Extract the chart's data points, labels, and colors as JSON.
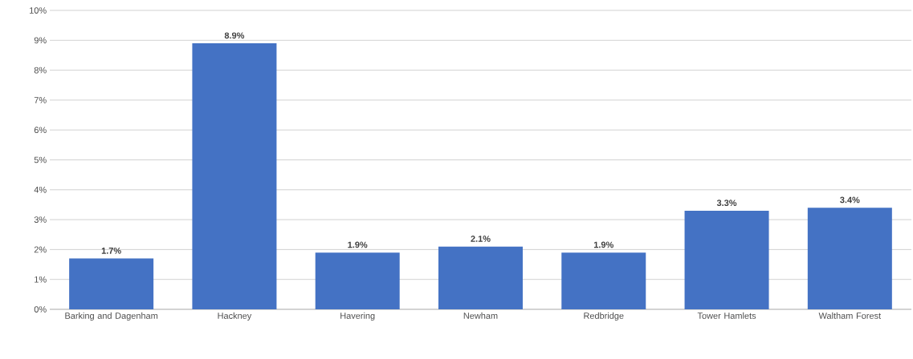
{
  "chart_data": {
    "type": "bar",
    "categories": [
      "Barking and Dagenham",
      "Hackney",
      "Havering",
      "Newham",
      "Redbridge",
      "Tower Hamlets",
      "Waltham Forest"
    ],
    "values": [
      1.7,
      8.9,
      1.9,
      2.1,
      1.9,
      3.3,
      3.4
    ],
    "value_labels": [
      "1.7%",
      "8.9%",
      "1.9%",
      "2.1%",
      "1.9%",
      "3.3%",
      "3.4%"
    ],
    "color": "#4472c4",
    "ylim": [
      0,
      10
    ],
    "yticks": [
      {
        "value": 0,
        "label": "0%"
      },
      {
        "value": 1,
        "label": "1%"
      },
      {
        "value": 2,
        "label": "2%"
      },
      {
        "value": 3,
        "label": "3%"
      },
      {
        "value": 4,
        "label": "4%"
      },
      {
        "value": 5,
        "label": "5%"
      },
      {
        "value": 6,
        "label": "6%"
      },
      {
        "value": 7,
        "label": "7%"
      },
      {
        "value": 8,
        "label": "8%"
      },
      {
        "value": 9,
        "label": "9%"
      },
      {
        "value": 10,
        "label": "10%"
      }
    ],
    "grid": "y"
  }
}
